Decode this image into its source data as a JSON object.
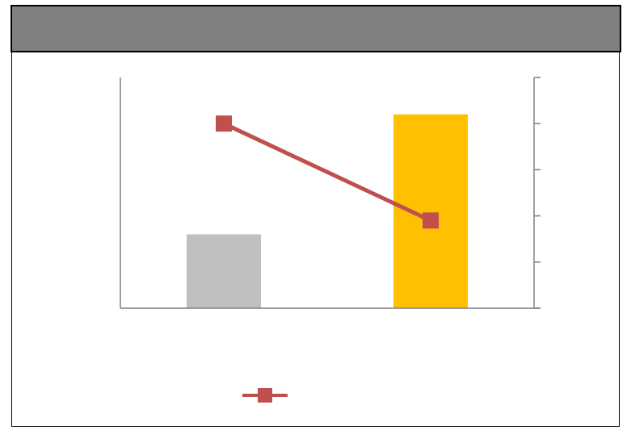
{
  "title": "",
  "chart_data": {
    "type": "bar",
    "categories": [
      "",
      ""
    ],
    "series": [
      {
        "kind": "bar",
        "values": [
          1.6,
          4.2
        ],
        "colors": [
          "#bfbfbf",
          "#ffc000"
        ]
      },
      {
        "kind": "line",
        "axis": "right",
        "values": [
          4.0,
          1.9
        ],
        "color": "#c0504d"
      }
    ],
    "ylim": [
      0,
      5
    ],
    "y2lim": [
      0,
      5
    ],
    "y2ticks": [
      0,
      1,
      2,
      3,
      4,
      5
    ],
    "grid": false,
    "legend": "bottom"
  },
  "legend": {
    "line_color": "#c0504d",
    "label": ""
  }
}
